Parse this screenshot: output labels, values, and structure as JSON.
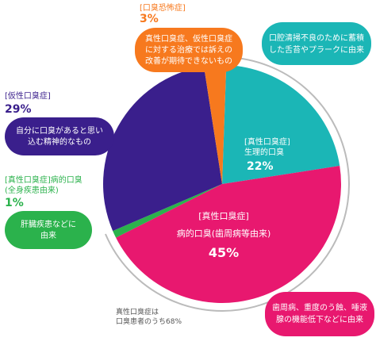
{
  "colors": {
    "phobia": "#f7791e",
    "pseudo": "#3a1f8c",
    "systemic": "#2bb24c",
    "oral": "#e8186f",
    "physiological": "#1bb6b6"
  },
  "chart_data": {
    "type": "pie",
    "slices": [
      {
        "category": "[真性口臭症] 生理的口臭",
        "value": 22
      },
      {
        "category": "[真性口臭症] 病的口臭(歯周病等由来)",
        "value": 45
      },
      {
        "category": "[真性口臭症]病的口臭 (全身疾患由来)",
        "value": 1
      },
      {
        "category": "[仮性口臭症]",
        "value": 29
      },
      {
        "category": "[口臭恐怖症]",
        "value": 3
      }
    ]
  },
  "labels": {
    "phobia": {
      "header": "[口臭恐怖症]",
      "percent": "3%",
      "desc": [
        "真性口臭症、仮性口臭症",
        "に対する治療では訴えの",
        "改善が期待できないもの"
      ]
    },
    "pseudo": {
      "header": "[仮性口臭症]",
      "percent": "29%",
      "desc": [
        "自分に口臭があると思い",
        "込む精神的なもの"
      ]
    },
    "systemic": {
      "header1": "[真性口臭症]病的口臭",
      "header2": "(全身疾患由来)",
      "percent": "1%",
      "desc": [
        "肝臓疾患などに",
        "由来"
      ]
    },
    "physiological": {
      "header1": "[真性口臭症]",
      "header2": "生理的口臭",
      "percent": "22%",
      "desc": [
        "口腔清掃不良のために蓄積",
        "した舌苔やプラークに由来"
      ]
    },
    "oral": {
      "header1": "[真性口臭症]",
      "header2": "病的口臭(歯周病等由来)",
      "percent": "45%",
      "desc": [
        "歯周病、重度のう蝕、唾液",
        "腺の機能低下などに由来"
      ]
    }
  },
  "note": [
    "真性口臭症は",
    "口臭患者のうち68%"
  ]
}
